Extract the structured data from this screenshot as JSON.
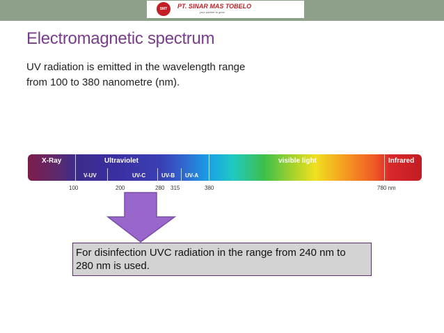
{
  "header": {
    "logo_badge": "SMT",
    "company_name": "PT. SINAR MAS TOBELO",
    "company_tagline": "your partner to grow"
  },
  "slide": {
    "title": "Electromagnetic spectrum",
    "body_line1": "UV radiation is emitted in the wavelength range",
    "body_line2": "from 100 to  380 nanometre (nm)."
  },
  "spectrum": {
    "segments": [
      "X-Ray",
      "Ultraviolet",
      "visible light",
      "Infrared"
    ],
    "uv_bands": [
      "V-UV",
      "UV-C",
      "UV-B",
      "UV-A"
    ],
    "ticks": [
      "100",
      "200",
      "280",
      "315",
      "380",
      "780 nm"
    ]
  },
  "callout": {
    "line1": "For disinfection UVC radiation in the range from 240 nm to",
    "line2": "280 nm is used."
  },
  "colors": {
    "title": "#7a3c8c",
    "arrow_fill": "#9966cc",
    "box_fill": "#d3d3d3",
    "box_border": "#5c2d6e",
    "top_band": "#8e9f8a"
  }
}
